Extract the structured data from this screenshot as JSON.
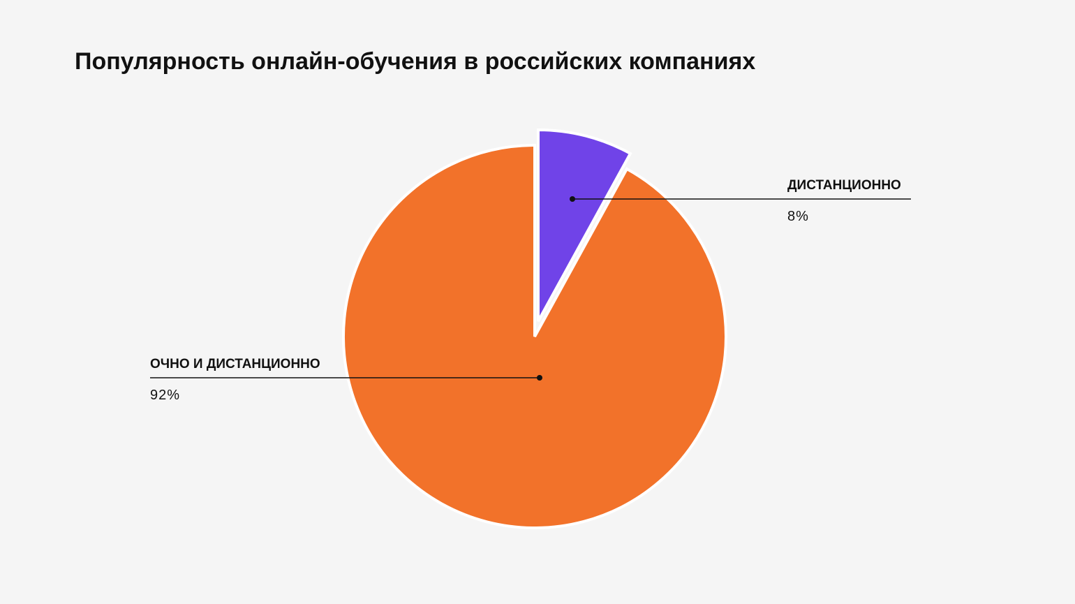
{
  "chart_data": {
    "type": "pie",
    "title": "Популярность онлайн-обучения в российских компаниях",
    "categories": [
      "ДИСТАНЦИОННО",
      "ОЧНО И ДИСТАНЦИОННО"
    ],
    "values": [
      8,
      92
    ],
    "value_labels": [
      "8%",
      "92%"
    ],
    "colors": [
      "#7043e8",
      "#f2722a"
    ]
  }
}
